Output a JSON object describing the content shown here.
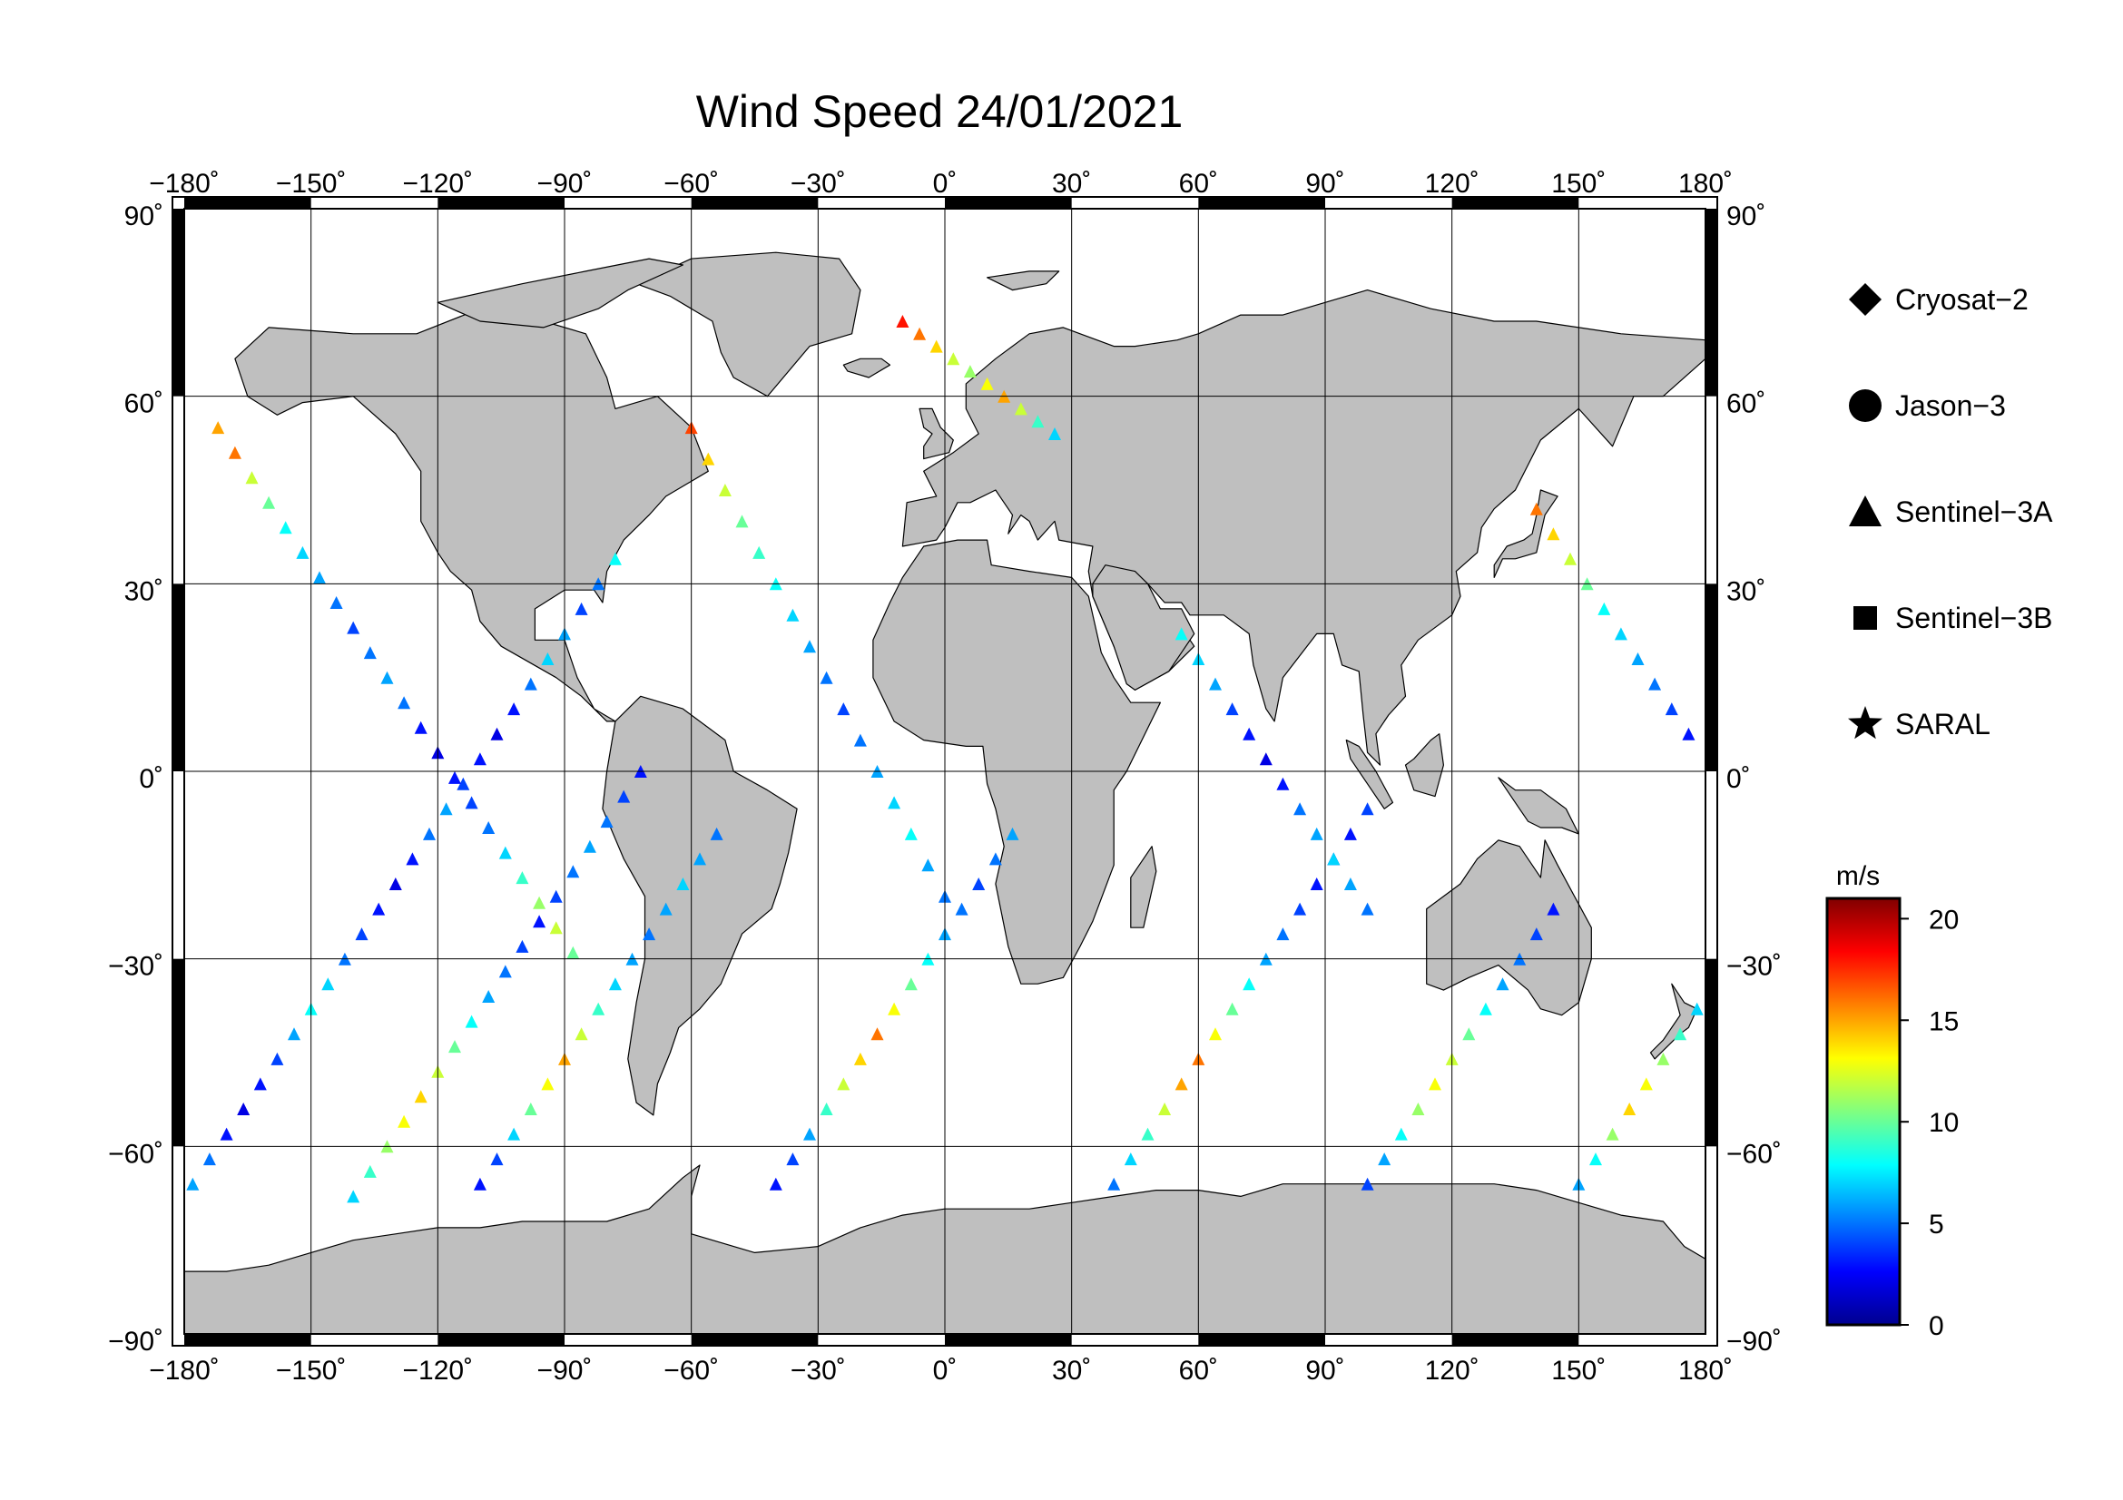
{
  "title": "Wind Speed 24/01/2021",
  "map": {
    "projection": "equirectangular",
    "lon_range": [
      -180,
      180
    ],
    "lat_range": [
      -90,
      90
    ],
    "lon_ticks": [
      {
        "value": -180,
        "label": "−180˚"
      },
      {
        "value": -150,
        "label": "−150˚"
      },
      {
        "value": -120,
        "label": "−120˚"
      },
      {
        "value": -90,
        "label": "−90˚"
      },
      {
        "value": -60,
        "label": "−60˚"
      },
      {
        "value": -30,
        "label": "−30˚"
      },
      {
        "value": 0,
        "label": "0˚"
      },
      {
        "value": 30,
        "label": "30˚"
      },
      {
        "value": 60,
        "label": "60˚"
      },
      {
        "value": 90,
        "label": "90˚"
      },
      {
        "value": 120,
        "label": "120˚"
      },
      {
        "value": 150,
        "label": "150˚"
      },
      {
        "value": 180,
        "label": "180˚"
      }
    ],
    "lat_ticks": [
      {
        "value": 90,
        "label": "90˚"
      },
      {
        "value": 60,
        "label": "60˚"
      },
      {
        "value": 30,
        "label": "30˚"
      },
      {
        "value": 0,
        "label": "0˚"
      },
      {
        "value": -30,
        "label": "−30˚"
      },
      {
        "value": -60,
        "label": "−60˚"
      },
      {
        "value": -90,
        "label": "−90˚"
      }
    ],
    "gridlines": true,
    "land_color": "#bfbfbf",
    "ocean_color": "#ffffff",
    "coastline_color": "#000000"
  },
  "legend": {
    "placement": "right",
    "items": [
      {
        "symbol": "diamond",
        "label": "Cryosat−2"
      },
      {
        "symbol": "circle",
        "label": "Jason−3"
      },
      {
        "symbol": "triangle",
        "label": "Sentinel−3A"
      },
      {
        "symbol": "square",
        "label": "Sentinel−3B"
      },
      {
        "symbol": "star",
        "label": "SARAL"
      }
    ]
  },
  "colorbar": {
    "unit": "m/s",
    "range": [
      0,
      21
    ],
    "ticks": [
      {
        "value": 0,
        "label": "0"
      },
      {
        "value": 5,
        "label": "5"
      },
      {
        "value": 10,
        "label": "10"
      },
      {
        "value": 15,
        "label": "15"
      },
      {
        "value": 20,
        "label": "20"
      }
    ],
    "colormap": [
      "#00008f",
      "#0000ff",
      "#0080ff",
      "#00ffff",
      "#80ff80",
      "#ffff00",
      "#ff8000",
      "#ff0000",
      "#800000"
    ]
  },
  "chart_data": {
    "type": "scatter",
    "xlabel": "",
    "ylabel": "",
    "xlim": [
      -180,
      180
    ],
    "ylim": [
      -90,
      90
    ],
    "value_unit": "m/s",
    "marker": "triangle",
    "series": [
      {
        "symbol": "triangle",
        "tracks": [
          {
            "lon": [
              -178,
              -174,
              -170,
              -166,
              -162,
              -158,
              -154,
              -150,
              -146,
              -142,
              -138,
              -134,
              -130,
              -126,
              -122,
              -118,
              -114,
              -110,
              -106,
              -102,
              -98,
              -94,
              -90,
              -86,
              -82,
              -78
            ],
            "lat": [
              -66,
              -62,
              -58,
              -54,
              -50,
              -46,
              -42,
              -38,
              -34,
              -30,
              -26,
              -22,
              -18,
              -14,
              -10,
              -6,
              -2,
              2,
              6,
              10,
              14,
              18,
              22,
              26,
              30,
              34
            ],
            "wind": [
              6,
              5,
              3,
              2,
              3,
              4,
              6,
              8,
              7,
              5,
              4,
              3,
              2,
              3,
              5,
              6,
              4,
              3,
              2,
              3,
              5,
              7,
              6,
              4,
              5,
              8
            ]
          },
          {
            "lon": [
              -172,
              -168,
              -164,
              -160,
              -156,
              -152,
              -148,
              -144,
              -140,
              -136,
              -132,
              -128,
              -124,
              -120,
              -116,
              -112,
              -108,
              -104,
              -100,
              -96,
              -92,
              -88
            ],
            "lat": [
              55,
              51,
              47,
              43,
              39,
              35,
              31,
              27,
              23,
              19,
              15,
              11,
              7,
              3,
              -1,
              -5,
              -9,
              -13,
              -17,
              -21,
              -25,
              -29
            ],
            "wind": [
              15,
              16,
              12,
              10,
              8,
              7,
              6,
              5,
              4,
              5,
              6,
              5,
              3,
              2,
              3,
              4,
              5,
              7,
              9,
              11,
              12,
              10
            ]
          },
          {
            "lon": [
              -140,
              -136,
              -132,
              -128,
              -124,
              -120,
              -116,
              -112,
              -108,
              -104,
              -100,
              -96,
              -92,
              -88,
              -84,
              -80,
              -76,
              -72
            ],
            "lat": [
              -68,
              -64,
              -60,
              -56,
              -52,
              -48,
              -44,
              -40,
              -36,
              -32,
              -28,
              -24,
              -20,
              -16,
              -12,
              -8,
              -4,
              0
            ],
            "wind": [
              7,
              9,
              11,
              13,
              14,
              12,
              10,
              8,
              6,
              5,
              4,
              3,
              4,
              5,
              6,
              5,
              4,
              3
            ]
          },
          {
            "lon": [
              -110,
              -106,
              -102,
              -98,
              -94,
              -90,
              -86,
              -82,
              -78,
              -74,
              -70,
              -66,
              -62,
              -58,
              -54
            ],
            "lat": [
              -66,
              -62,
              -58,
              -54,
              -50,
              -46,
              -42,
              -38,
              -34,
              -30,
              -26,
              -22,
              -18,
              -14,
              -10
            ],
            "wind": [
              3,
              4,
              7,
              10,
              13,
              15,
              12,
              9,
              7,
              6,
              5,
              6,
              7,
              6,
              5
            ]
          },
          {
            "lon": [
              -60,
              -56,
              -52,
              -48,
              -44,
              -40,
              -36,
              -32,
              -28,
              -24,
              -20,
              -16,
              -12,
              -8,
              -4,
              0
            ],
            "lat": [
              55,
              50,
              45,
              40,
              35,
              30,
              25,
              20,
              15,
              10,
              5,
              0,
              -5,
              -10,
              -15,
              -20
            ],
            "wind": [
              17,
              14,
              12,
              10,
              9,
              8,
              7,
              6,
              5,
              4,
              5,
              6,
              7,
              8,
              6,
              5
            ]
          },
          {
            "lon": [
              -40,
              -36,
              -32,
              -28,
              -24,
              -20,
              -16,
              -12,
              -8,
              -4,
              0,
              4,
              8,
              12,
              16
            ],
            "lat": [
              -66,
              -62,
              -58,
              -54,
              -50,
              -46,
              -42,
              -38,
              -34,
              -30,
              -26,
              -22,
              -18,
              -14,
              -10
            ],
            "wind": [
              3,
              4,
              6,
              9,
              12,
              14,
              16,
              13,
              10,
              8,
              6,
              5,
              4,
              5,
              6
            ]
          },
          {
            "lon": [
              -10,
              -6,
              -2,
              2,
              6,
              10,
              14,
              18,
              22,
              26
            ],
            "lat": [
              72,
              70,
              68,
              66,
              64,
              62,
              60,
              58,
              56,
              54
            ],
            "wind": [
              18,
              16,
              14,
              12,
              11,
              13,
              15,
              12,
              9,
              7
            ]
          },
          {
            "lon": [
              40,
              44,
              48,
              52,
              56,
              60,
              64,
              68,
              72,
              76,
              80,
              84,
              88,
              92,
              96,
              100
            ],
            "lat": [
              -66,
              -62,
              -58,
              -54,
              -50,
              -46,
              -42,
              -38,
              -34,
              -30,
              -26,
              -22,
              -18,
              -14,
              -10,
              -6
            ],
            "wind": [
              5,
              7,
              9,
              12,
              15,
              16,
              13,
              10,
              8,
              6,
              5,
              4,
              3,
              2,
              3,
              4
            ]
          },
          {
            "lon": [
              56,
              60,
              64,
              68,
              72,
              76,
              80,
              84,
              88,
              92,
              96,
              100
            ],
            "lat": [
              22,
              18,
              14,
              10,
              6,
              2,
              -2,
              -6,
              -10,
              -14,
              -18,
              -22
            ],
            "wind": [
              8,
              7,
              6,
              4,
              3,
              2,
              3,
              5,
              6,
              7,
              6,
              5
            ]
          },
          {
            "lon": [
              100,
              104,
              108,
              112,
              116,
              120,
              124,
              128,
              132,
              136,
              140,
              144
            ],
            "lat": [
              -66,
              -62,
              -58,
              -54,
              -50,
              -46,
              -42,
              -38,
              -34,
              -30,
              -26,
              -22
            ],
            "wind": [
              4,
              6,
              8,
              11,
              13,
              12,
              10,
              8,
              6,
              5,
              4,
              3
            ]
          },
          {
            "lon": [
              140,
              144,
              148,
              152,
              156,
              160,
              164,
              168,
              172,
              176
            ],
            "lat": [
              42,
              38,
              34,
              30,
              26,
              22,
              18,
              14,
              10,
              6
            ],
            "wind": [
              16,
              14,
              12,
              10,
              8,
              7,
              6,
              5,
              4,
              3
            ]
          },
          {
            "lon": [
              150,
              154,
              158,
              162,
              166,
              170,
              174,
              178
            ],
            "lat": [
              -66,
              -62,
              -58,
              -54,
              -50,
              -46,
              -42,
              -38
            ],
            "wind": [
              6,
              8,
              11,
              14,
              13,
              11,
              9,
              7
            ]
          }
        ]
      }
    ]
  }
}
